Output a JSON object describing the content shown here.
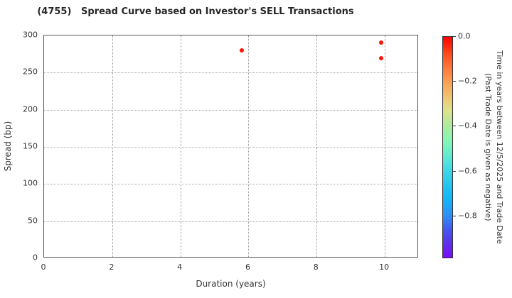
{
  "title": "(4755)   Spread Curve based on Investor's SELL Transactions",
  "chart_data": {
    "type": "scatter",
    "title": "(4755)   Spread Curve based on Investor's SELL Transactions",
    "xlabel": "Duration (years)",
    "ylabel": "Spread (bp)",
    "xlim": [
      0,
      11
    ],
    "ylim": [
      0,
      300
    ],
    "xticks": [
      0,
      2,
      4,
      6,
      8,
      10
    ],
    "yticks": [
      0,
      50,
      100,
      150,
      200,
      250,
      300
    ],
    "grid": true,
    "legend": "none",
    "marker_color": "#fb1505",
    "points": [
      {
        "x": 5.8,
        "y": 280,
        "color": "#fb1505"
      },
      {
        "x": 9.9,
        "y": 290,
        "color": "#fb1505"
      },
      {
        "x": 9.9,
        "y": 269,
        "color": "#fb1505"
      }
    ],
    "colorbar": {
      "label_line1": "Time in years between 12/5/2025 and Trade Date",
      "label_line2": "(Past Trade Date is given as negative)",
      "vmax": 0.0,
      "vmin": -0.99,
      "tick_labels": [
        "0.0",
        "−0.2",
        "−0.4",
        "−0.6",
        "−0.8"
      ],
      "tick_values": [
        0.0,
        -0.2,
        -0.4,
        -0.6,
        -0.8
      ],
      "gradient_stops": [
        {
          "pos": 0.0,
          "color": "#fa0200"
        },
        {
          "pos": 0.07,
          "color": "#fd4518"
        },
        {
          "pos": 0.13,
          "color": "#fe7038"
        },
        {
          "pos": 0.19,
          "color": "#fb9750"
        },
        {
          "pos": 0.27,
          "color": "#f0c370"
        },
        {
          "pos": 0.33,
          "color": "#dfe18c"
        },
        {
          "pos": 0.4,
          "color": "#aeeb9c"
        },
        {
          "pos": 0.47,
          "color": "#85f6b4"
        },
        {
          "pos": 0.54,
          "color": "#60ead2"
        },
        {
          "pos": 0.6,
          "color": "#41d9e5"
        },
        {
          "pos": 0.68,
          "color": "#21c2ef"
        },
        {
          "pos": 0.74,
          "color": "#14b4f4"
        },
        {
          "pos": 0.81,
          "color": "#2f8ef5"
        },
        {
          "pos": 0.88,
          "color": "#4653ee"
        },
        {
          "pos": 0.94,
          "color": "#5f2eea"
        },
        {
          "pos": 1.0,
          "color": "#7a0bfa"
        }
      ]
    }
  }
}
